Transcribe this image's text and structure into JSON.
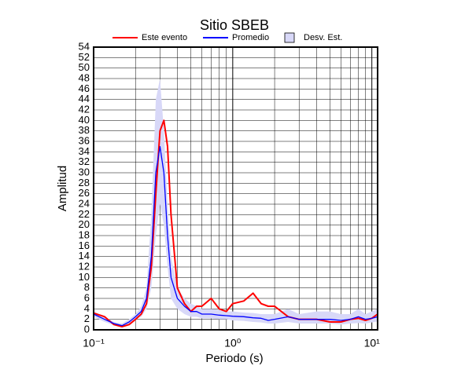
{
  "chart_data": {
    "type": "line",
    "title": "Sitio SBEB",
    "x_label": "Periodo (s)",
    "y_label": "Amplitud",
    "x_scale": "log",
    "grid": true,
    "xlim": [
      0.1,
      11
    ],
    "ylim": [
      0,
      54
    ],
    "xticks": [
      {
        "value": 0.1,
        "label": "10⁻¹"
      },
      {
        "value": 1,
        "label": "10⁰"
      },
      {
        "value": 10,
        "label": "10¹"
      }
    ],
    "xminorticks": [
      0.2,
      0.3,
      0.4,
      0.5,
      0.6,
      0.7,
      0.8,
      0.9,
      2,
      3,
      4,
      5,
      6,
      7,
      8,
      9
    ],
    "yticks": [
      0,
      2,
      4,
      6,
      8,
      10,
      12,
      14,
      16,
      18,
      20,
      22,
      24,
      26,
      28,
      30,
      32,
      34,
      36,
      38,
      40,
      42,
      44,
      46,
      48,
      50,
      52,
      54
    ],
    "x": [
      0.1,
      0.12,
      0.14,
      0.16,
      0.18,
      0.2,
      0.22,
      0.24,
      0.26,
      0.28,
      0.3,
      0.32,
      0.34,
      0.36,
      0.4,
      0.45,
      0.5,
      0.55,
      0.6,
      0.7,
      0.8,
      0.9,
      1,
      1.2,
      1.4,
      1.6,
      1.8,
      2,
      2.5,
      3,
      4,
      5,
      6,
      7,
      8,
      9,
      10,
      11
    ],
    "series": [
      {
        "name": "Este evento",
        "color": "#ff0000",
        "values": [
          3.2,
          2.5,
          1,
          0.6,
          1,
          2,
          3,
          5,
          12,
          26,
          38,
          40,
          35,
          22,
          8,
          5,
          3.5,
          4.5,
          4.5,
          6,
          4,
          3.5,
          5,
          5.5,
          7,
          5,
          4.5,
          4.5,
          2.5,
          2,
          2,
          1.5,
          1.5,
          2,
          2.2,
          1.8,
          2.2,
          3
        ]
      },
      {
        "name": "Promedio",
        "color": "#0000ff",
        "values": [
          3,
          2,
          1.2,
          0.8,
          1.5,
          2.5,
          3.5,
          6,
          14,
          30,
          35,
          30,
          18,
          10,
          6,
          4.5,
          3.5,
          3.5,
          3,
          3,
          2.8,
          2.7,
          2.6,
          2.5,
          2.3,
          2.2,
          1.8,
          2,
          2.5,
          2,
          2,
          2,
          1.8,
          2,
          2.5,
          2,
          2.2,
          2.5
        ]
      },
      {
        "name": "Desv. Est.",
        "color": "#d8d8f8",
        "type": "band",
        "upper": [
          3.5,
          2.5,
          1.5,
          1.2,
          2,
          3,
          4.5,
          8,
          22,
          44,
          48,
          38,
          24,
          14,
          8,
          6,
          5,
          4.5,
          4,
          4,
          3.8,
          3.5,
          3.5,
          3.3,
          3.2,
          3,
          3,
          3,
          4,
          3,
          3.5,
          3.5,
          3,
          3,
          4,
          3,
          3.5,
          4
        ],
        "lower": [
          2.5,
          1.5,
          0.9,
          0.5,
          1,
          2,
          2.5,
          4,
          8,
          18,
          24,
          20,
          12,
          6,
          4,
          3,
          2.5,
          2.5,
          2.2,
          2.2,
          2,
          2,
          1.8,
          1.7,
          1.5,
          1.4,
          1.2,
          1.2,
          1.5,
          1.2,
          1.2,
          1.2,
          1,
          1.2,
          1.3,
          1.2,
          1.4,
          1.6
        ]
      }
    ]
  }
}
